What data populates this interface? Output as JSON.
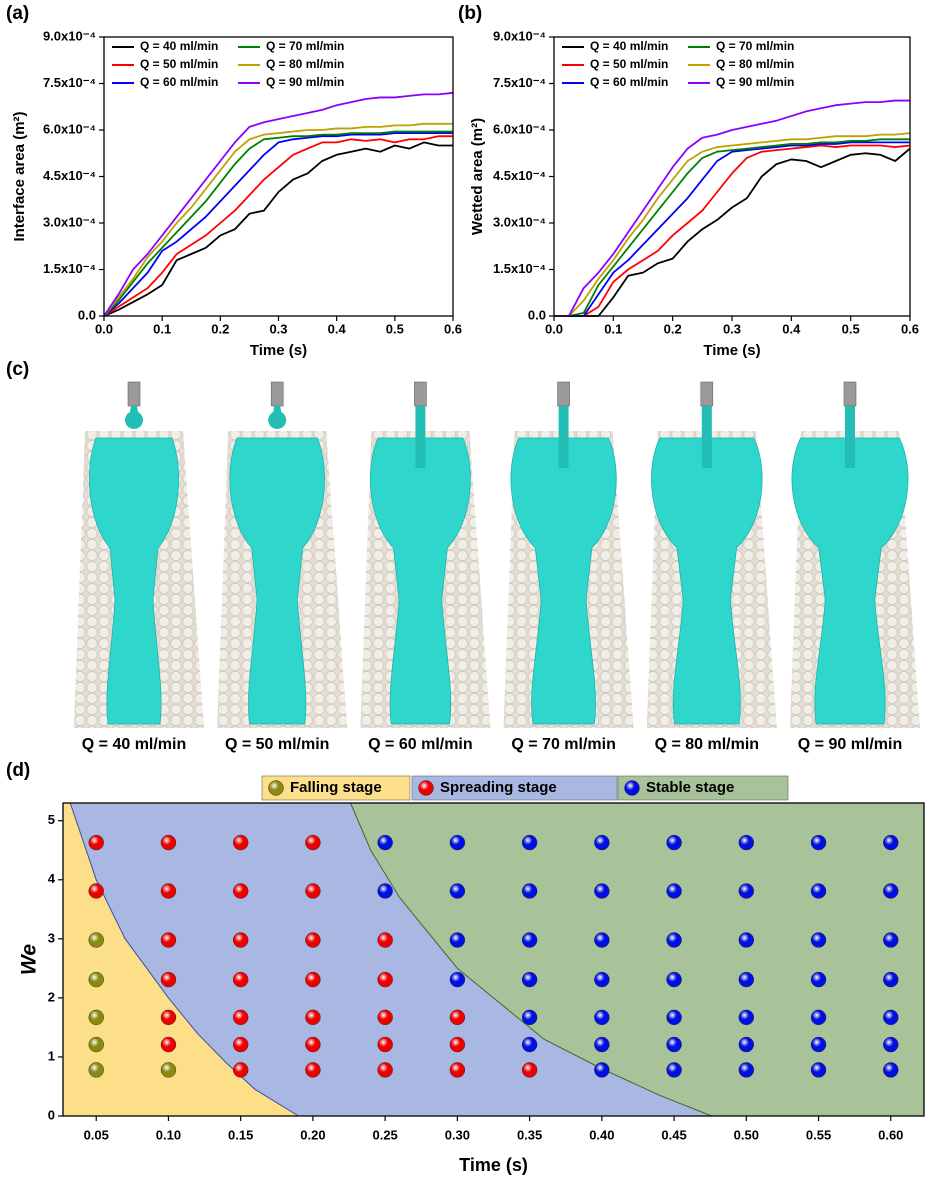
{
  "chart_data": [
    {
      "type": "line",
      "label": "(a)",
      "xlabel": "Time (s)",
      "ylabel": "Interface area (m²)",
      "xlim": [
        0,
        0.6
      ],
      "ylim": [
        0,
        0.0009
      ],
      "xticks": [
        {
          "value": 0,
          "label": "0.0"
        },
        0.1,
        0.2,
        0.3,
        0.4,
        0.5,
        0.6
      ],
      "yticks": [
        {
          "value": 0,
          "label": "0.0"
        },
        {
          "value": 0.00015,
          "label": "1.5x10⁻⁴"
        },
        {
          "value": 0.0003,
          "label": "3.0x10⁻⁴"
        },
        {
          "value": 0.00045,
          "label": "4.5x10⁻⁴"
        },
        {
          "value": 0.0006,
          "label": "6.0x10⁻⁴"
        },
        {
          "value": 0.00075,
          "label": "7.5x10⁻⁴"
        },
        {
          "value": 0.0009,
          "label": "9.0x10⁻⁴"
        }
      ],
      "x": [
        0,
        0.025,
        0.05,
        0.075,
        0.1,
        0.125,
        0.15,
        0.175,
        0.2,
        0.225,
        0.25,
        0.275,
        0.3,
        0.325,
        0.35,
        0.375,
        0.4,
        0.425,
        0.45,
        0.475,
        0.5,
        0.525,
        0.55,
        0.575,
        0.6
      ],
      "series": [
        {
          "name": "Q = 40 ml/min",
          "color": "#000000",
          "values": [
            0,
            2e-05,
            4.5e-05,
            7e-05,
            0.0001,
            0.00018,
            0.0002,
            0.00022,
            0.00026,
            0.00028,
            0.00033,
            0.00034,
            0.0004,
            0.00044,
            0.00046,
            0.0005,
            0.00052,
            0.00053,
            0.00054,
            0.00053,
            0.00055,
            0.00054,
            0.00056,
            0.00055,
            0.00055
          ]
        },
        {
          "name": "Q = 50 ml/min",
          "color": "#ff0000",
          "values": [
            0,
            3e-05,
            6e-05,
            9e-05,
            0.00014,
            0.0002,
            0.00023,
            0.00026,
            0.0003,
            0.00034,
            0.00039,
            0.00044,
            0.00048,
            0.00052,
            0.00054,
            0.00056,
            0.00056,
            0.00057,
            0.000565,
            0.00057,
            0.00056,
            0.00057,
            0.00057,
            0.00058,
            0.00058
          ]
        },
        {
          "name": "Q = 60 ml/min",
          "color": "#0000ff",
          "values": [
            0,
            4e-05,
            9e-05,
            0.00014,
            0.00021,
            0.00024,
            0.00028,
            0.00032,
            0.00037,
            0.00042,
            0.00047,
            0.00052,
            0.00056,
            0.00057,
            0.000575,
            0.00058,
            0.00058,
            0.000585,
            0.000585,
            0.000585,
            0.00059,
            0.00059,
            0.00059,
            0.00059,
            0.00059
          ]
        },
        {
          "name": "Q = 70 ml/min",
          "color": "#008000",
          "values": [
            0,
            5e-05,
            0.00011,
            0.00017,
            0.00022,
            0.00027,
            0.00032,
            0.00037,
            0.00043,
            0.00049,
            0.00054,
            0.00057,
            0.000575,
            0.00058,
            0.00058,
            0.000585,
            0.000585,
            0.00059,
            0.00059,
            0.00059,
            0.000595,
            0.000595,
            0.000595,
            0.000595,
            0.000595
          ]
        },
        {
          "name": "Q = 80 ml/min",
          "color": "#c0a000",
          "values": [
            0,
            6e-05,
            0.00012,
            0.00019,
            0.00024,
            0.0003,
            0.00035,
            0.00041,
            0.00047,
            0.00053,
            0.00057,
            0.000585,
            0.00059,
            0.000595,
            0.0006,
            0.0006,
            0.000605,
            0.000605,
            0.00061,
            0.00061,
            0.000615,
            0.000615,
            0.00062,
            0.00062,
            0.00062
          ]
        },
        {
          "name": "Q = 90 ml/min",
          "color": "#8b00ff",
          "values": [
            0,
            7e-05,
            0.00015,
            0.0002,
            0.00026,
            0.00032,
            0.00038,
            0.00044,
            0.0005,
            0.00056,
            0.00061,
            0.000625,
            0.000635,
            0.000645,
            0.000655,
            0.000665,
            0.00068,
            0.00069,
            0.0007,
            0.000705,
            0.000705,
            0.00071,
            0.000715,
            0.000715,
            0.00072
          ]
        }
      ]
    },
    {
      "type": "line",
      "label": "(b)",
      "xlabel": "Time (s)",
      "ylabel": "Wetted area (m²)",
      "xlim": [
        0,
        0.6
      ],
      "ylim": [
        0,
        0.0009
      ],
      "xticks": [
        {
          "value": 0,
          "label": "0.0"
        },
        0.1,
        0.2,
        0.3,
        0.4,
        0.5,
        0.6
      ],
      "yticks": [
        {
          "value": 0,
          "label": "0.0"
        },
        {
          "value": 0.00015,
          "label": "1.5x10⁻⁴"
        },
        {
          "value": 0.0003,
          "label": "3.0x10⁻⁴"
        },
        {
          "value": 0.00045,
          "label": "4.5x10⁻⁴"
        },
        {
          "value": 0.0006,
          "label": "6.0x10⁻⁴"
        },
        {
          "value": 0.00075,
          "label": "7.5x10⁻⁴"
        },
        {
          "value": 0.0009,
          "label": "9.0x10⁻⁴"
        }
      ],
      "x": [
        0,
        0.025,
        0.05,
        0.075,
        0.1,
        0.125,
        0.15,
        0.175,
        0.2,
        0.225,
        0.25,
        0.275,
        0.3,
        0.325,
        0.35,
        0.375,
        0.4,
        0.425,
        0.45,
        0.475,
        0.5,
        0.525,
        0.55,
        0.575,
        0.6
      ],
      "series": [
        {
          "name": "Q = 40 ml/min",
          "color": "#000000",
          "values": [
            0,
            0,
            0,
            0,
            6e-05,
            0.00013,
            0.00014,
            0.00017,
            0.000185,
            0.00024,
            0.00028,
            0.00031,
            0.00035,
            0.00038,
            0.00045,
            0.00049,
            0.000505,
            0.0005,
            0.00048,
            0.0005,
            0.00052,
            0.000525,
            0.00052,
            0.0005,
            0.00054
          ]
        },
        {
          "name": "Q = 50 ml/min",
          "color": "#ff0000",
          "values": [
            0,
            0,
            0,
            3e-05,
            0.00011,
            0.00015,
            0.00018,
            0.00021,
            0.00026,
            0.0003,
            0.00034,
            0.0004,
            0.00046,
            0.00051,
            0.00053,
            0.000535,
            0.00054,
            0.000545,
            0.00055,
            0.000545,
            0.00055,
            0.00055,
            0.00055,
            0.000545,
            0.00055
          ]
        },
        {
          "name": "Q = 60 ml/min",
          "color": "#0000ff",
          "values": [
            0,
            0,
            0,
            7e-05,
            0.00014,
            0.00018,
            0.00023,
            0.00028,
            0.00033,
            0.00038,
            0.00044,
            0.0005,
            0.00053,
            0.000535,
            0.00054,
            0.000545,
            0.00055,
            0.00055,
            0.000555,
            0.000555,
            0.00056,
            0.00056,
            0.00056,
            0.00056,
            0.00056
          ]
        },
        {
          "name": "Q = 70 ml/min",
          "color": "#008000",
          "values": [
            0,
            0,
            1e-05,
            0.0001,
            0.00016,
            0.00022,
            0.00028,
            0.00034,
            0.0004,
            0.00046,
            0.00051,
            0.00053,
            0.000535,
            0.00054,
            0.000545,
            0.00055,
            0.000555,
            0.000555,
            0.00056,
            0.00056,
            0.000565,
            0.000565,
            0.00057,
            0.00057,
            0.00057
          ]
        },
        {
          "name": "Q = 80 ml/min",
          "color": "#c0a000",
          "values": [
            0,
            0,
            5e-05,
            0.00012,
            0.00018,
            0.00025,
            0.00031,
            0.00038,
            0.00044,
            0.0005,
            0.00053,
            0.000545,
            0.00055,
            0.000555,
            0.00056,
            0.000565,
            0.00057,
            0.00057,
            0.000575,
            0.00058,
            0.00058,
            0.00058,
            0.000585,
            0.000585,
            0.00059
          ]
        },
        {
          "name": "Q = 90 ml/min",
          "color": "#8b00ff",
          "values": [
            0,
            0,
            9e-05,
            0.00014,
            0.0002,
            0.00027,
            0.00034,
            0.00041,
            0.00048,
            0.00054,
            0.000575,
            0.000585,
            0.0006,
            0.00061,
            0.00062,
            0.00063,
            0.000645,
            0.00066,
            0.00067,
            0.00068,
            0.000685,
            0.00069,
            0.00069,
            0.000695,
            0.000695
          ]
        }
      ]
    },
    {
      "type": "scatter",
      "label": "(d)",
      "xlabel": "Time (s)",
      "ylabel": "We",
      "xlim": [
        0.027,
        0.623
      ],
      "ylim": [
        0,
        5.3
      ],
      "xticks": [
        0.05,
        {
          "value": 0.1,
          "label": "0.10"
        },
        0.15,
        {
          "value": 0.2,
          "label": "0.20"
        },
        0.25,
        {
          "value": 0.3,
          "label": "0.30"
        },
        0.35,
        {
          "value": 0.4,
          "label": "0.40"
        },
        0.45,
        {
          "value": 0.5,
          "label": "0.50"
        },
        0.55,
        {
          "value": 0.6,
          "label": "0.60"
        }
      ],
      "yticks": [
        0,
        1,
        2,
        3,
        4,
        5
      ],
      "series": [
        {
          "name": "Falling stage",
          "color": "#8a8a10",
          "region_color": "#fddf8a",
          "x": [
            0.05,
            0.05,
            0.05,
            0.05,
            0.05,
            0.1
          ],
          "y": [
            0.78,
            1.21,
            1.67,
            2.31,
            2.98,
            0.78
          ],
          "region_boundary": {
            "x": [
              0.032,
              0.05,
              0.07,
              0.1,
              0.12,
              0.14,
              0.16,
              0.19
            ],
            "y": [
              5.3,
              4.0,
              3.0,
              2.0,
              1.4,
              0.9,
              0.45,
              0
            ]
          }
        },
        {
          "name": "Spreading stage",
          "color": "#ee0000",
          "region_color": "#a9b8e2",
          "x": [
            0.05,
            0.05,
            0.1,
            0.1,
            0.1,
            0.1,
            0.1,
            0.1,
            0.15,
            0.15,
            0.15,
            0.15,
            0.15,
            0.15,
            0.15,
            0.2,
            0.2,
            0.2,
            0.2,
            0.2,
            0.2,
            0.2,
            0.25,
            0.25,
            0.25,
            0.25,
            0.25,
            0.3,
            0.3,
            0.3,
            0.35
          ],
          "y": [
            3.81,
            4.63,
            1.21,
            1.67,
            2.31,
            2.98,
            3.81,
            4.63,
            0.78,
            1.21,
            1.67,
            2.31,
            2.98,
            3.81,
            4.63,
            0.78,
            1.21,
            1.67,
            2.31,
            2.98,
            3.81,
            4.63,
            0.78,
            1.21,
            1.67,
            2.31,
            2.98,
            0.78,
            1.21,
            1.67,
            0.78
          ]
        },
        {
          "name": "Stable stage",
          "color": "#0010e0",
          "region_color": "#a8c29a",
          "x": [
            0.25,
            0.25,
            0.3,
            0.3,
            0.3,
            0.3,
            0.35,
            0.35,
            0.35,
            0.35,
            0.35,
            0.35,
            0.4,
            0.4,
            0.4,
            0.4,
            0.4,
            0.4,
            0.4,
            0.45,
            0.45,
            0.45,
            0.45,
            0.45,
            0.45,
            0.45,
            0.5,
            0.5,
            0.5,
            0.5,
            0.5,
            0.5,
            0.5,
            0.55,
            0.55,
            0.55,
            0.55,
            0.55,
            0.55,
            0.55,
            0.6,
            0.6,
            0.6,
            0.6,
            0.6,
            0.6,
            0.6
          ],
          "y": [
            3.81,
            4.63,
            2.31,
            2.98,
            3.81,
            4.63,
            1.21,
            1.67,
            2.31,
            2.98,
            3.81,
            4.63,
            0.78,
            1.21,
            1.67,
            2.31,
            2.98,
            3.81,
            4.63,
            0.78,
            1.21,
            1.67,
            2.31,
            2.98,
            3.81,
            4.63,
            0.78,
            1.21,
            1.67,
            2.31,
            2.98,
            3.81,
            4.63,
            0.78,
            1.21,
            1.67,
            2.31,
            2.98,
            3.81,
            4.63,
            0.78,
            1.21,
            1.67,
            2.31,
            2.98,
            3.81,
            4.63
          ],
          "region_boundary": {
            "x": [
              0.226,
              0.24,
              0.26,
              0.28,
              0.3,
              0.33,
              0.36,
              0.4,
              0.44,
              0.476
            ],
            "y": [
              5.3,
              4.5,
              3.7,
              3.1,
              2.5,
              1.9,
              1.3,
              0.8,
              0.35,
              0
            ]
          }
        }
      ]
    }
  ],
  "simulation_snapshots": {
    "label": "(c)",
    "captions": [
      "Q = 40 ml/min",
      "Q = 50 ml/min",
      "Q = 60 ml/min",
      "Q = 70 ml/min",
      "Q = 80 ml/min",
      "Q = 90 ml/min"
    ]
  }
}
